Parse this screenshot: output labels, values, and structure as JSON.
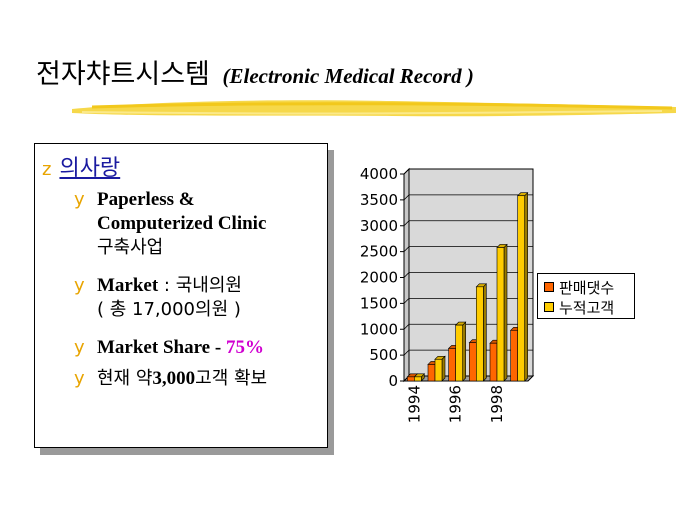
{
  "title": {
    "main": "전자챠트시스템",
    "sub": "(Electronic Medical Record )"
  },
  "content": {
    "heading": {
      "bullet": "z",
      "text": "의사랑"
    },
    "bullet_char": "y",
    "items": [
      {
        "line1": "Paperless &",
        "line2": "Computerized Clinic",
        "line3": "구축사업"
      },
      {
        "line1_a": "Market",
        "line1_b": " : 국내의원",
        "line2": "( 총 17,000의원 )"
      },
      {
        "a": "Market Share",
        "b": " - ",
        "c": "75%"
      },
      {
        "a": "현재 약",
        "b": "3,000",
        "c": "고객 확보"
      }
    ]
  },
  "chart_data": {
    "type": "bar",
    "x": [
      1994,
      1995,
      1996,
      1997,
      1998,
      1999
    ],
    "tick_labels": [
      "1994",
      "1996",
      "1998"
    ],
    "series": [
      {
        "name": "판매댓수",
        "color": "#ff6600",
        "values": [
          80,
          320,
          630,
          740,
          730,
          980
        ]
      },
      {
        "name": "누적고객",
        "color": "#ffcc00",
        "values": [
          80,
          420,
          1080,
          1820,
          2580,
          3580
        ]
      }
    ],
    "ylim": [
      0,
      4000
    ],
    "yticks": [
      0,
      500,
      1000,
      1500,
      2000,
      2500,
      3000,
      3500,
      4000
    ],
    "grid": true,
    "legend": "right"
  }
}
